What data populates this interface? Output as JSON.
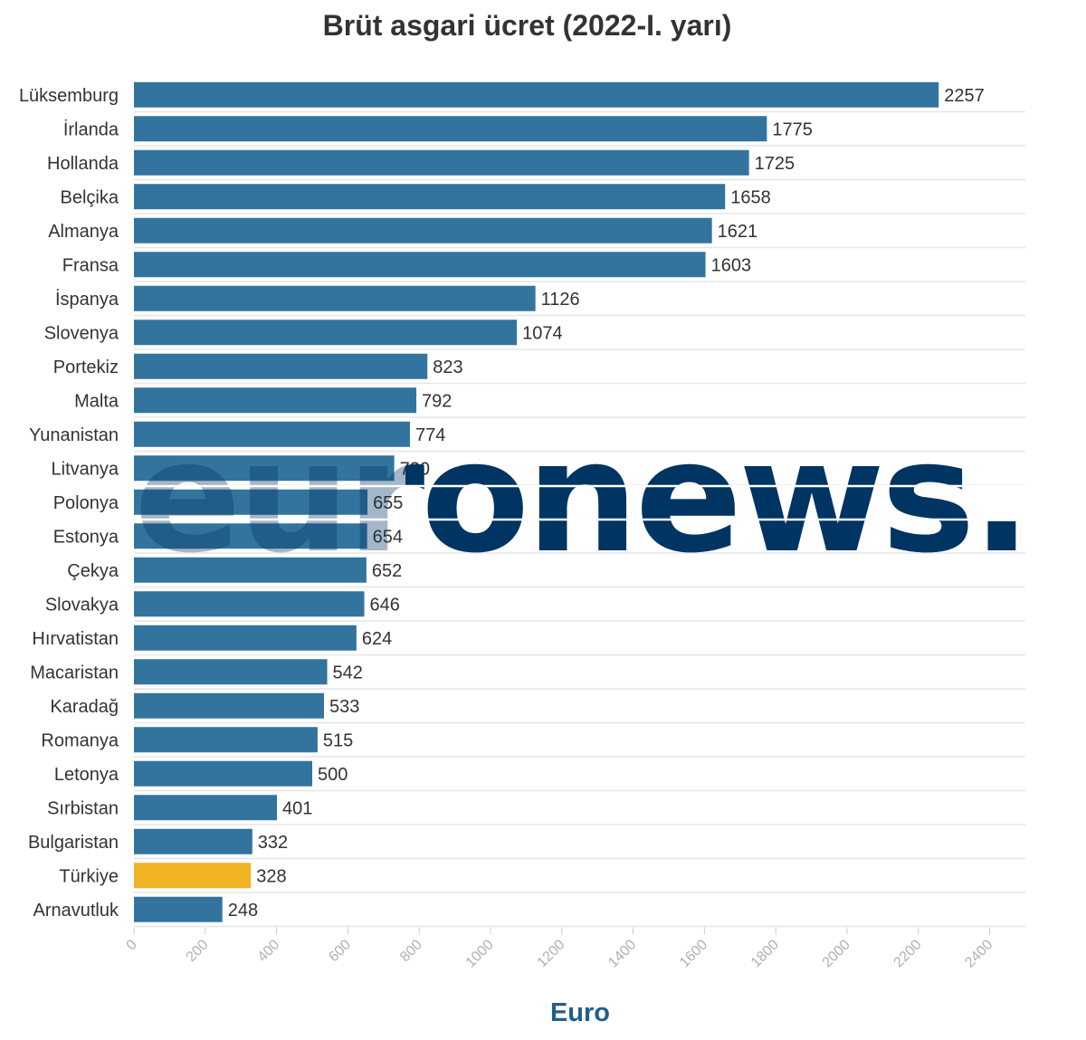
{
  "chart_data": {
    "type": "bar",
    "orientation": "horizontal",
    "title": "Brüt asgari ücret (2022-I. yarı)",
    "xlabel": "Euro",
    "ylabel": "",
    "xlim": [
      0,
      2500
    ],
    "x_ticks": [
      "0",
      "200",
      "400",
      "600",
      "800",
      "1000",
      "1200",
      "1400",
      "1600",
      "1800",
      "2000",
      "2200",
      "2400"
    ],
    "categories": [
      "Lüksemburg",
      "İrlanda",
      "Hollanda",
      "Belçika",
      "Almanya",
      "Fransa",
      "İspanya",
      "Slovenya",
      "Portekiz",
      "Malta",
      "Yunanistan",
      "Litvanya",
      "Polonya",
      "Estonya",
      "Çekya",
      "Slovakya",
      "Hırvatistan",
      "Macaristan",
      "Karadağ",
      "Romanya",
      "Letonya",
      "Sırbistan",
      "Bulgaristan",
      "Türkiye",
      "Arnavutluk"
    ],
    "values": [
      2257,
      1775,
      1725,
      1658,
      1621,
      1603,
      1126,
      1074,
      823,
      792,
      774,
      730,
      655,
      654,
      652,
      646,
      624,
      542,
      533,
      515,
      500,
      401,
      332,
      328,
      248
    ],
    "highlight_category": "Türkiye",
    "grid": "horizontal separators",
    "legend": "none"
  },
  "colors": {
    "bar": "#33749f",
    "highlight": "#f0b323",
    "axis_title": "#215f87",
    "watermark": "#003462",
    "grid": "#e6e6e6"
  },
  "watermark": {
    "text": "euronews."
  }
}
